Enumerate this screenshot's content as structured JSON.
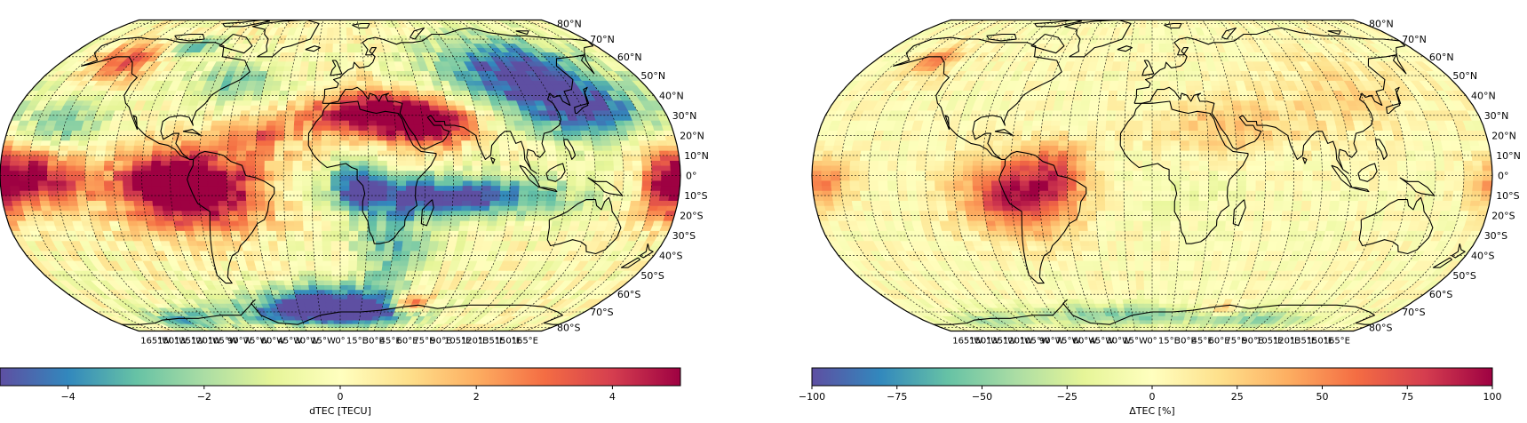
{
  "maps": [
    {
      "id": "dtec",
      "colorbar": {
        "label": "dTEC [TECU]",
        "min": -5,
        "max": 5,
        "ticks": [
          -4,
          -2,
          0,
          2,
          4
        ],
        "tick_labels": [
          "−4",
          "−2",
          "0",
          "2",
          "4"
        ],
        "colormap": "Spectral_r"
      },
      "lat_labels": [
        "80°N",
        "70°N",
        "60°N",
        "50°N",
        "40°N",
        "30°N",
        "20°N",
        "10°N",
        "0°",
        "10°S",
        "20°S",
        "30°S",
        "40°S",
        "50°S",
        "60°S",
        "70°S",
        "80°S"
      ],
      "lon_labels": [
        "165°W",
        "150°W",
        "135°W",
        "120°W",
        "105°W",
        "90°W",
        "75°W",
        "60°W",
        "45°W",
        "30°W",
        "15°W",
        "0°",
        "15°E",
        "30°E",
        "45°E",
        "60°E",
        "75°E",
        "90°E",
        "105°E",
        "120°E",
        "135°E",
        "150°E",
        "165°E"
      ]
    },
    {
      "id": "rel",
      "colorbar": {
        "label": "ΔTEC [%]",
        "min": -100,
        "max": 100,
        "ticks": [
          -100,
          -75,
          -50,
          -25,
          0,
          25,
          50,
          75,
          100
        ],
        "tick_labels": [
          "−100",
          "−75",
          "−50",
          "−25",
          "0",
          "25",
          "50",
          "75",
          "100"
        ],
        "colormap": "Spectral_r"
      },
      "lat_labels": [
        "80°N",
        "70°N",
        "60°N",
        "50°N",
        "40°N",
        "30°N",
        "20°N",
        "10°N",
        "0°",
        "10°S",
        "20°S",
        "30°S",
        "40°S",
        "50°S",
        "60°S",
        "70°S",
        "80°S"
      ],
      "lon_labels": [
        "165°W",
        "150°W",
        "135°W",
        "120°W",
        "105°W",
        "90°W",
        "75°W",
        "60°W",
        "45°W",
        "30°W",
        "15°W",
        "0°",
        "15°E",
        "30°E",
        "45°E",
        "60°E",
        "75°E",
        "90°E",
        "105°E",
        "120°E",
        "135°E",
        "150°E",
        "165°E"
      ]
    }
  ],
  "colors": {
    "spectral_r": [
      "#5e4fa2",
      "#3288bd",
      "#66c2a5",
      "#abdda4",
      "#e6f598",
      "#ffffbf",
      "#fee08b",
      "#fdae61",
      "#f46d43",
      "#d53e4f",
      "#9e0142"
    ],
    "coastline": "#000000",
    "gridline": "#000000"
  }
}
